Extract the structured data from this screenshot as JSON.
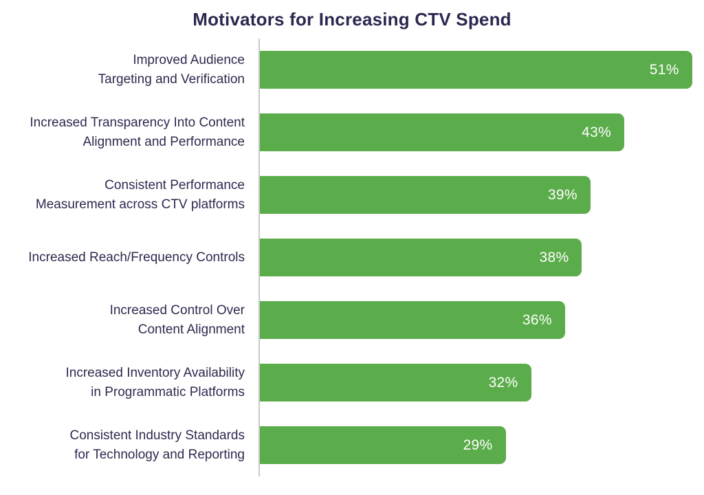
{
  "chart_data": {
    "type": "bar",
    "orientation": "horizontal",
    "title": "Motivators for Increasing CTV Spend",
    "categories": [
      "Improved Audience Targeting and Verification",
      "Increased Transparency Into Content Alignment and Performance",
      "Consistent Performance Measurement across CTV platforms",
      "Increased Reach/Frequency Controls",
      "Increased Control Over Content Alignment",
      "Increased Inventory Availability in Programmatic Platforms",
      "Consistent Industry Standards for Technology and Reporting"
    ],
    "values": [
      51,
      43,
      39,
      38,
      36,
      32,
      29
    ],
    "unit": "%",
    "xlabel": "",
    "ylabel": "",
    "xlim": [
      0,
      52.4
    ],
    "grid": false,
    "legend": false,
    "bar_color": "#5bac4a",
    "value_label_color": "#ffffff",
    "category_label_color": "#2d2a4e",
    "title_color": "#2b2850",
    "axis_line_color": "#c8c8c8"
  },
  "rows": [
    {
      "label": "Improved Audience\nTargeting and Verification",
      "value": 51,
      "value_label": "51%"
    },
    {
      "label": "Increased Transparency Into Content\nAlignment and Performance",
      "value": 43,
      "value_label": "43%"
    },
    {
      "label": "Consistent Performance\nMeasurement across CTV platforms",
      "value": 39,
      "value_label": "39%"
    },
    {
      "label": "Increased Reach/Frequency Controls",
      "value": 38,
      "value_label": "38%"
    },
    {
      "label": "Increased Control Over\nContent Alignment",
      "value": 36,
      "value_label": "36%"
    },
    {
      "label": "Increased Inventory Availability\nin Programmatic Platforms",
      "value": 32,
      "value_label": "32%"
    },
    {
      "label": "Consistent Industry Standards\nfor Technology and Reporting",
      "value": 29,
      "value_label": "29%"
    }
  ]
}
